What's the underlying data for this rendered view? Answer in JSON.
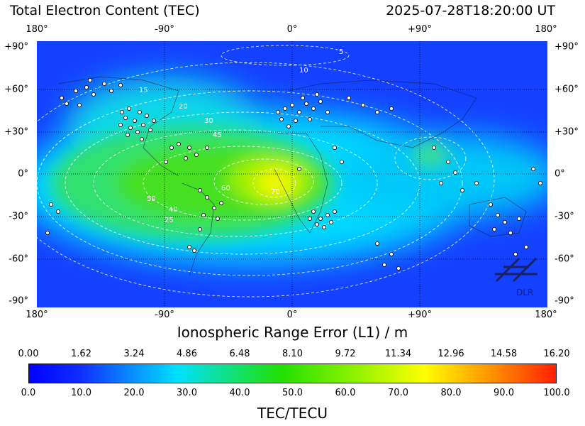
{
  "header": {
    "title": "Total Electron Content (TEC)",
    "timestamp": "2025-07-28T18:20:00 UT"
  },
  "map": {
    "x_ticks": [
      "180°",
      "-90°",
      "0°",
      "+90°",
      "180°"
    ],
    "y_ticks": [
      "+90°",
      "+60°",
      "+30°",
      "0°",
      "-30°",
      "-60°",
      "-90°"
    ],
    "xlabel": "Ionospheric Range Error (L1) / m",
    "contour_labels": [
      "5",
      "10",
      "15",
      "20",
      "25",
      "30",
      "40",
      "45",
      "50",
      "60",
      "70"
    ],
    "watermark": "DLR",
    "colors": {
      "low": "#1030ff",
      "mid": "#00e0ff",
      "high_mid": "#22e000",
      "high": "#ffff00",
      "max": "#ff2000"
    }
  },
  "colorbar": {
    "top_ticks": [
      "0.00",
      "1.62",
      "3.24",
      "4.86",
      "6.48",
      "8.10",
      "9.72",
      "11.34",
      "12.96",
      "14.58",
      "16.20"
    ],
    "bottom_ticks": [
      "0.0",
      "10.0",
      "20.0",
      "30.0",
      "40.0",
      "50.0",
      "60.0",
      "70.0",
      "80.0",
      "90.0",
      "100.0"
    ],
    "label": "TEC/TECU"
  }
}
